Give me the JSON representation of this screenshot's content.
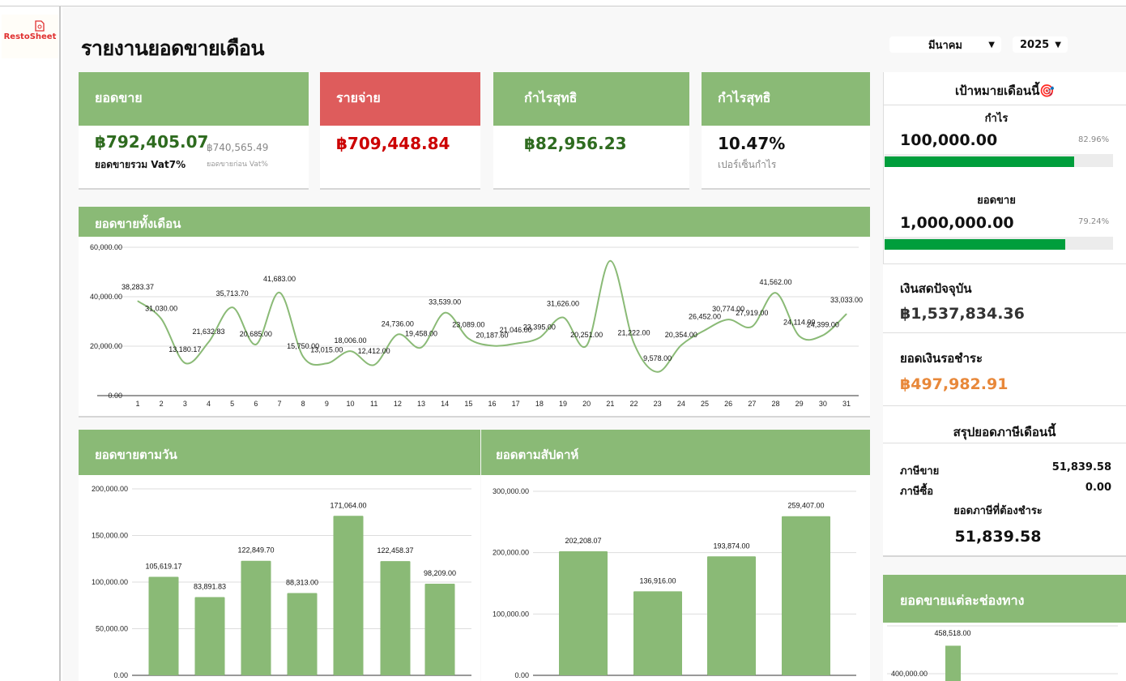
{
  "app": {
    "logo_text": "RestoSheet"
  },
  "header": {
    "title": "รายงานยอดขายเดือน",
    "month_select": "มีนาคม",
    "year_select": "2025"
  },
  "kpis": [
    {
      "title": "ยอดขาย",
      "value": "฿792,405.07",
      "caption": "ยอดขายรวม Vat7%",
      "secondary_value": "฿740,565.49",
      "secondary_caption": "ยอดขายก่อน Vat%",
      "color": "#8aba76",
      "value_color": "#2e6b1f"
    },
    {
      "title": "รายจ่าย",
      "value": "฿709,448.84",
      "color": "#de5c5c",
      "value_color": "#cc0000"
    },
    {
      "title": "กำไรสุทธิ",
      "value": "฿82,956.23",
      "color": "#8aba76",
      "value_color": "#2e6b1f"
    },
    {
      "title": "กำไรสุทธิ",
      "value": "10.47%",
      "caption": "เปอร์เซ็นกำไร",
      "color": "#8aba76",
      "value_color": "#111111"
    }
  ],
  "targets": {
    "title": "เป้าหมายเดือนนี้🎯",
    "profit": {
      "label": "กำไร",
      "value": "100,000.00",
      "percent_label": "82.96%",
      "progress": 0.8296
    },
    "sales": {
      "label": "ยอดขาย",
      "value": "1,000,000.00",
      "percent_label": "79.24%",
      "progress": 0.7924
    }
  },
  "cash": {
    "label": "เงินสดปัจจุบัน",
    "value": "฿1,537,834.36"
  },
  "pending": {
    "label": "ยอดเงินรอชำระ",
    "value": "฿497,982.91",
    "color": "#e8883a"
  },
  "tax": {
    "title": "สรุปยอดภาษีเดือนนี้",
    "sales_tax_label": "ภาษีขาย",
    "sales_tax": "51,839.58",
    "purchase_tax_label": "ภาษีซื้อ",
    "purchase_tax": "0.00",
    "due_label": "ยอดภาษีที่ต้องชำระ",
    "due": "51,839.58"
  },
  "chart_data": [
    {
      "id": "daily",
      "type": "line",
      "title": "ยอดขายทั้งเดือน",
      "smooth": true,
      "color": "#8aba76",
      "grid": true,
      "x": [
        1,
        2,
        3,
        4,
        5,
        6,
        7,
        8,
        9,
        10,
        11,
        12,
        13,
        14,
        15,
        16,
        17,
        18,
        19,
        20,
        21,
        22,
        23,
        24,
        25,
        26,
        27,
        28,
        29,
        30,
        31
      ],
      "values": [
        38283.37,
        31030,
        13180.17,
        21632.83,
        35713.7,
        20685,
        41683,
        15750,
        13015,
        18006,
        12412,
        24736,
        19458,
        33539,
        23089,
        20187.6,
        21046,
        23395,
        31626,
        20251,
        54500,
        21222,
        9578,
        20354,
        26452,
        30774,
        27919,
        41562,
        24114,
        24399,
        33033
      ],
      "labels": [
        "38,283.37",
        "31,030.00",
        "13,180.17",
        "21,632.83",
        "35,713.70",
        "20,685.00",
        "41,683.00",
        "15,750.00",
        "13,015.00",
        "18,006.00",
        "12,412.00",
        "24,736.00",
        "19,458.00",
        "33,539.00",
        "23,089.00",
        "20,187.60",
        "21,046.00",
        "23,395.00",
        "31,626.00",
        "20,251.00",
        null,
        "21,222.00",
        "9,578.00",
        "20,354.00",
        "26,452.00",
        "30,774.00",
        "27,919.00",
        "41,562.00",
        "24,114.00",
        "24,399.00",
        "33,033.00"
      ],
      "yticks": [
        "0.00",
        "20,000.00",
        "40,000.00",
        "60,000.00"
      ],
      "ylim": [
        0,
        60000
      ]
    },
    {
      "id": "weekday",
      "type": "bar",
      "title": "ยอดขายตามวัน",
      "color": "#8aba76",
      "grid": true,
      "values": [
        105619.17,
        83891.83,
        122849.7,
        88313,
        171064,
        122458.37,
        98209
      ],
      "labels": [
        "105,619.17",
        "83,891.83",
        "122,849.70",
        "88,313.00",
        "171,064.00",
        "122,458.37",
        "98,209.00"
      ],
      "yticks": [
        "0.00",
        "50,000.00",
        "100,000.00",
        "150,000.00",
        "200,000.00"
      ],
      "ylim": [
        0,
        200000
      ]
    },
    {
      "id": "weekly",
      "type": "bar",
      "title": "ยอดตามสัปดาห์",
      "color": "#8aba76",
      "grid": true,
      "values": [
        202208.07,
        136916,
        193874,
        259407
      ],
      "labels": [
        "202,208.07",
        "136,916.00",
        "193,874.00",
        "259,407.00"
      ],
      "yticks": [
        "0.00",
        "100,000.00",
        "200,000.00",
        "300,000.00"
      ],
      "ylim": [
        0,
        300000
      ]
    },
    {
      "id": "channel",
      "type": "bar",
      "title": "ยอดขายแต่ละช่องทาง",
      "color": "#8aba76",
      "grid": true,
      "values": [
        458518
      ],
      "labels": [
        "458,518.00"
      ],
      "yticks": [
        "400,000.00"
      ]
    }
  ]
}
